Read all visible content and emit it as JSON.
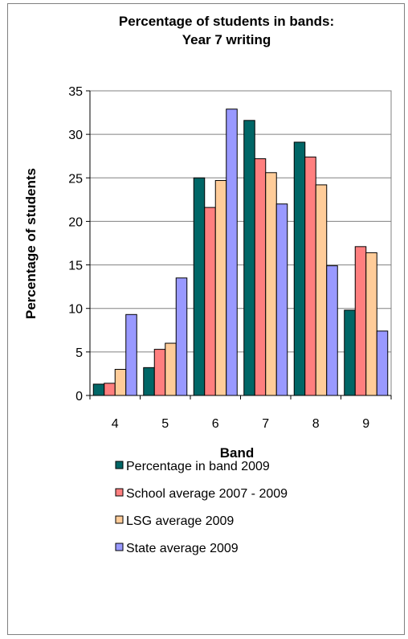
{
  "chart_data": {
    "type": "bar",
    "title": [
      "Percentage of students in bands:",
      "Year 7 writing"
    ],
    "xlabel": "Band",
    "ylabel": "Percentage of students",
    "categories": [
      "4",
      "5",
      "6",
      "7",
      "8",
      "9"
    ],
    "ylim": [
      0,
      35
    ],
    "yticks": [
      0,
      5,
      10,
      15,
      20,
      25,
      30,
      35
    ],
    "grid": true,
    "legend_position": "bottom",
    "series": [
      {
        "name": "Percentage in band 2009",
        "color": "#006666",
        "values": [
          1.3,
          3.2,
          25.0,
          31.6,
          29.1,
          9.8
        ]
      },
      {
        "name": "School average 2007 - 2009",
        "color": "#FF7F7F",
        "values": [
          1.4,
          5.3,
          21.6,
          27.2,
          27.4,
          17.1
        ]
      },
      {
        "name": "LSG average 2009",
        "color": "#FFCC99",
        "values": [
          3.0,
          6.0,
          24.7,
          25.6,
          24.2,
          16.4
        ]
      },
      {
        "name": "State average 2009",
        "color": "#9999FF",
        "values": [
          9.3,
          13.5,
          32.9,
          22.0,
          14.9,
          7.4
        ]
      }
    ]
  }
}
